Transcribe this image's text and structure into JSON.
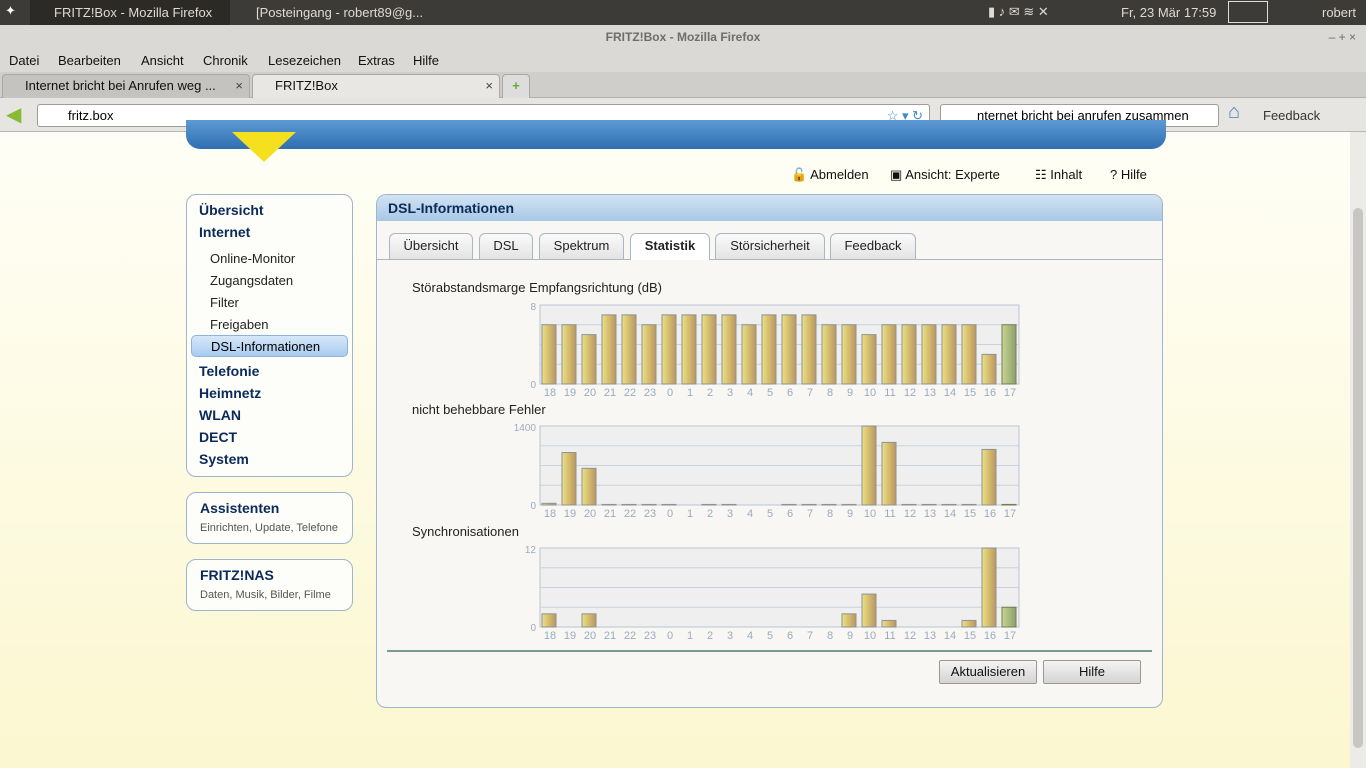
{
  "system": {
    "tasks": [
      "FRITZ!Box - Mozilla Firefox",
      "[Posteingang - robert89@g..."
    ],
    "clock": "Fr, 23 Mär  17:59",
    "user": "robert"
  },
  "window": {
    "title": "FRITZ!Box - Mozilla Firefox"
  },
  "menu": [
    "Datei",
    "Bearbeiten",
    "Ansicht",
    "Chronik",
    "Lesezeichen",
    "Extras",
    "Hilfe"
  ],
  "tabs": [
    {
      "label": "Internet bricht bei Anrufen weg ..."
    },
    {
      "label": "FRITZ!Box"
    }
  ],
  "urlbar": {
    "value": "fritz.box"
  },
  "searchbar": {
    "value": "nternet bricht bei anrufen zusammen"
  },
  "toolbar": {
    "feedback": "Feedback"
  },
  "toplinks": {
    "logout": "Abmelden",
    "view_label": "Ansicht:",
    "view_value": "Experte",
    "content": "Inhalt",
    "help": "Hilfe"
  },
  "sidebar": {
    "main": [
      "Übersicht",
      "Internet"
    ],
    "internet_items": [
      "Online-Monitor",
      "Zugangsdaten",
      "Filter",
      "Freigaben",
      "DSL-Informationen"
    ],
    "more": [
      "Telefonie",
      "Heimnetz",
      "WLAN",
      "DECT",
      "System"
    ],
    "assist_title": "Assistenten",
    "assist_sub": "Einrichten, Update, Telefone",
    "nas_title": "FRITZ!NAS",
    "nas_sub": "Daten, Musik, Bilder, Filme"
  },
  "panel": {
    "title": "DSL-Informationen",
    "tabs": [
      "Übersicht",
      "DSL",
      "Spektrum",
      "Statistik",
      "Störsicherheit",
      "Feedback"
    ],
    "active_tab": "Statistik",
    "refresh": "Aktualisieren",
    "help": "Hilfe"
  },
  "chart_data": [
    {
      "type": "bar",
      "title": "Störabstandsmarge Empfangsrichtung (dB)",
      "categories": [
        "18",
        "19",
        "20",
        "21",
        "22",
        "23",
        "0",
        "1",
        "2",
        "3",
        "4",
        "5",
        "6",
        "7",
        "8",
        "9",
        "10",
        "11",
        "12",
        "13",
        "14",
        "15",
        "16",
        "17"
      ],
      "values": [
        6,
        6,
        5,
        7,
        7,
        6,
        7,
        7,
        7,
        7,
        6,
        7,
        7,
        7,
        6,
        6,
        5,
        6,
        6,
        6,
        6,
        6,
        3,
        6
      ],
      "ylim": [
        0,
        8
      ],
      "yticks": [
        "0",
        "8"
      ],
      "grid": true
    },
    {
      "type": "bar",
      "title": "nicht behebbare Fehler",
      "categories": [
        "18",
        "19",
        "20",
        "21",
        "22",
        "23",
        "0",
        "1",
        "2",
        "3",
        "4",
        "5",
        "6",
        "7",
        "8",
        "9",
        "10",
        "11",
        "12",
        "13",
        "14",
        "15",
        "16",
        "17"
      ],
      "values": [
        30,
        930,
        650,
        10,
        10,
        10,
        10,
        0,
        10,
        10,
        0,
        0,
        10,
        10,
        10,
        10,
        1400,
        1110,
        10,
        10,
        10,
        10,
        985,
        10
      ],
      "ylim": [
        0,
        1400
      ],
      "yticks": [
        "0",
        "1400"
      ],
      "grid": true
    },
    {
      "type": "bar",
      "title": "Synchronisationen",
      "categories": [
        "18",
        "19",
        "20",
        "21",
        "22",
        "23",
        "0",
        "1",
        "2",
        "3",
        "4",
        "5",
        "6",
        "7",
        "8",
        "9",
        "10",
        "11",
        "12",
        "13",
        "14",
        "15",
        "16",
        "17"
      ],
      "values": [
        2,
        0,
        2,
        0,
        0,
        0,
        0,
        0,
        0,
        0,
        0,
        0,
        0,
        0,
        0,
        2,
        5,
        1,
        0,
        0,
        0,
        1,
        12,
        3
      ],
      "ylim": [
        0,
        12
      ],
      "yticks": [
        "0",
        "12"
      ],
      "grid": true
    }
  ],
  "colors": {
    "bar": "#d4b96a",
    "current_bar": "#a9b87c",
    "header": "#b6d0ea"
  }
}
